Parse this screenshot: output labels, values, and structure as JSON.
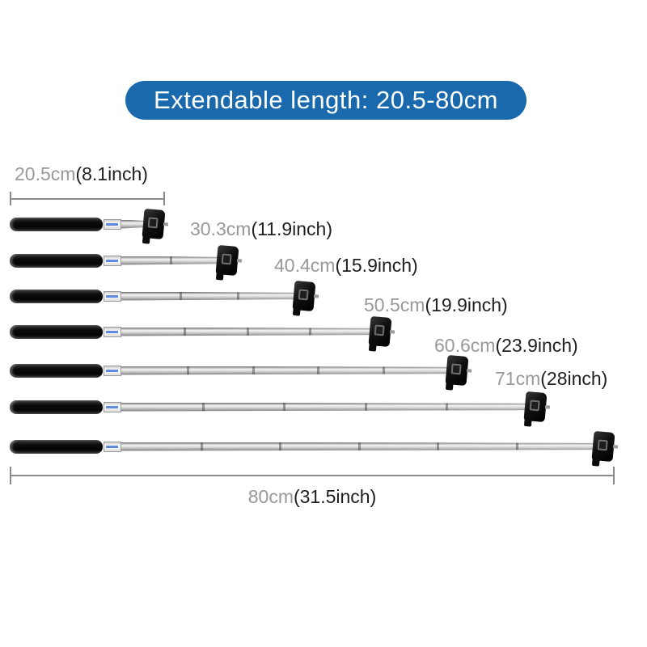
{
  "banner": {
    "text": "Extendable length: 20.5-80cm",
    "bg_color": "#1a69ad",
    "text_color": "#ffffff"
  },
  "diagram": {
    "sticks": [
      {
        "cm": 20.5,
        "inch": 8.1,
        "label_cm": "20.5cm",
        "label_inch": "(8.1inch)"
      },
      {
        "cm": 30.3,
        "inch": 11.9,
        "label_cm": "30.3cm",
        "label_inch": "(11.9inch)"
      },
      {
        "cm": 40.4,
        "inch": 15.9,
        "label_cm": "40.4cm",
        "label_inch": "(15.9inch)"
      },
      {
        "cm": 50.5,
        "inch": 19.9,
        "label_cm": "50.5cm",
        "label_inch": "(19.9inch)"
      },
      {
        "cm": 60.6,
        "inch": 23.9,
        "label_cm": "60.6cm",
        "label_inch": "(23.9inch)"
      },
      {
        "cm": 71,
        "inch": 28,
        "label_cm": "71cm",
        "label_inch": "(28inch)"
      },
      {
        "cm": 80,
        "inch": 31.5,
        "label_cm": "80cm",
        "label_inch": "(31.5inch)"
      }
    ],
    "dimension_top_cm": 20.5,
    "dimension_bottom_cm": 80,
    "colors": {
      "label_cm_gray": "#999999",
      "label_inch_dark": "#1f1f1f",
      "dimension_line_gray": "#8a8a8a",
      "banner_blue": "#1a69ad",
      "handle_black": "#0c0c0c",
      "tube_silver": "#d6d6d6"
    }
  }
}
